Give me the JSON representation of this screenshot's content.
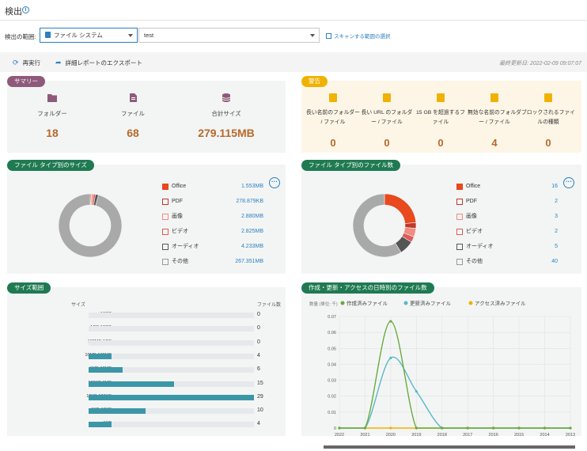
{
  "header": {
    "title": "検出"
  },
  "scope": {
    "label": "検出の範囲:",
    "type_value": "ファイル システム",
    "path_value": "test",
    "scan_link": "スキャンする範囲の選択"
  },
  "toolbar": {
    "rerun": "再実行",
    "export": "詳細レポートのエクスポート",
    "last_updated": "最終更新日: 2022-02-09 09:07:07"
  },
  "summary": {
    "badge": "サマリー",
    "items": [
      {
        "label": "フォルダー",
        "value": "18",
        "icon": "folder-icon"
      },
      {
        "label": "ファイル",
        "value": "68",
        "icon": "file-icon"
      },
      {
        "label": "合計サイズ",
        "value": "279.115MB",
        "icon": "database-icon"
      }
    ]
  },
  "warnings": {
    "badge": "警告",
    "items": [
      {
        "label": "長い名前のフォルダー / ファイル",
        "value": "0",
        "icon": "long-name-icon"
      },
      {
        "label": "長い URL のフォルダー / ファイル",
        "value": "0",
        "icon": "long-url-icon"
      },
      {
        "label": "15 GB を超過するファイル",
        "value": "0",
        "icon": "large-file-icon"
      },
      {
        "label": "無効な名前のフォルダー / ファイル",
        "value": "4",
        "icon": "invalid-name-icon"
      },
      {
        "label": "ブロックされるファイルの種類",
        "value": "0",
        "icon": "blocked-type-icon"
      }
    ]
  },
  "size_by_type": {
    "badge": "ファイル タイプ別のサイズ",
    "items": [
      {
        "name": "Office",
        "value": "1.553MB",
        "color": "#e8491d",
        "icon": "office-icon"
      },
      {
        "name": "PDF",
        "value": "278.879KB",
        "color": "#c0392b",
        "icon": "pdf-icon"
      },
      {
        "name": "画像",
        "value": "2.880MB",
        "color": "#f28b82",
        "icon": "image-icon"
      },
      {
        "name": "ビデオ",
        "value": "2.825MB",
        "color": "#e05a5a",
        "icon": "video-icon"
      },
      {
        "name": "オーディオ",
        "value": "4.233MB",
        "color": "#555555",
        "icon": "audio-icon"
      },
      {
        "name": "その他",
        "value": "267.351MB",
        "color": "#a9a9a9",
        "icon": "other-file-icon"
      }
    ]
  },
  "count_by_type": {
    "badge": "ファイル タイプ別のファイル数",
    "items": [
      {
        "name": "Office",
        "value": "16",
        "color": "#e8491d",
        "icon": "office-icon"
      },
      {
        "name": "PDF",
        "value": "2",
        "color": "#c0392b",
        "icon": "pdf-icon"
      },
      {
        "name": "画像",
        "value": "3",
        "color": "#f28b82",
        "icon": "image-icon"
      },
      {
        "name": "ビデオ",
        "value": "2",
        "color": "#e05a5a",
        "icon": "video-icon"
      },
      {
        "name": "オーディオ",
        "value": "5",
        "color": "#555555",
        "icon": "audio-icon"
      },
      {
        "name": "その他",
        "value": "40",
        "color": "#a9a9a9",
        "icon": "other-file-icon"
      }
    ]
  },
  "size_range": {
    "badge": "サイズ範囲",
    "col_size": "サイズ",
    "col_count": "ファイル数",
    "max": 29,
    "rows": [
      {
        "label": ">10GB",
        "count": 0
      },
      {
        "label": "1GB-10GB",
        "count": 0
      },
      {
        "label": "100MB-1GB",
        "count": 0
      },
      {
        "label": "10MB-100MB",
        "count": 4
      },
      {
        "label": "1MB-10MB",
        "count": 6
      },
      {
        "label": "100KB-1MB",
        "count": 15
      },
      {
        "label": "10KB-100KB",
        "count": 29
      },
      {
        "label": "1KB-10KB",
        "count": 10
      },
      {
        "label": "<1KB",
        "count": 4
      }
    ],
    "bar_color": "#3b97a8"
  },
  "date_chart": {
    "badge": "作成・更新・アクセスの日時別のファイル数"
  },
  "chart_data": [
    {
      "type": "pie",
      "title": "ファイル タイプ別のサイズ",
      "categories": [
        "Office",
        "PDF",
        "画像",
        "ビデオ",
        "オーディオ",
        "その他"
      ],
      "values": [
        1.553,
        0.279,
        2.88,
        2.825,
        4.233,
        267.351
      ],
      "colors": [
        "#e8491d",
        "#c0392b",
        "#f28b82",
        "#e05a5a",
        "#555555",
        "#a9a9a9"
      ]
    },
    {
      "type": "pie",
      "title": "ファイル タイプ別のファイル数",
      "categories": [
        "Office",
        "PDF",
        "画像",
        "ビデオ",
        "オーディオ",
        "その他"
      ],
      "values": [
        16,
        2,
        3,
        2,
        5,
        40
      ],
      "colors": [
        "#e8491d",
        "#c0392b",
        "#f28b82",
        "#e05a5a",
        "#555555",
        "#a9a9a9"
      ]
    },
    {
      "type": "bar",
      "title": "サイズ範囲",
      "categories": [
        ">10GB",
        "1GB-10GB",
        "100MB-1GB",
        "10MB-100MB",
        "1MB-10MB",
        "100KB-1MB",
        "10KB-100KB",
        "1KB-10KB",
        "<1KB"
      ],
      "values": [
        0,
        0,
        0,
        4,
        6,
        15,
        29,
        10,
        4
      ]
    },
    {
      "type": "line",
      "title": "作成・更新・アクセスの日時別のファイル数",
      "ylabel": "数量 (単位: 千)",
      "x": [
        "2022",
        "2021",
        "2020",
        "2019",
        "2018",
        "2017",
        "2016",
        "2015",
        "2014",
        "2013"
      ],
      "ylim": [
        0,
        0.07
      ],
      "yticks": [
        "0",
        "0.01",
        "0.02",
        "0.03",
        "0.04",
        "0.05",
        "0.06",
        "0.07"
      ],
      "grid": true,
      "legend": "top",
      "series": [
        {
          "name": "作成済みファイル",
          "color": "#6aaa3e",
          "values": [
            0,
            0,
            0.067,
            0,
            0,
            0,
            0,
            0,
            0,
            0
          ]
        },
        {
          "name": "更新済みファイル",
          "color": "#5bb8c9",
          "values": [
            0,
            0,
            0.044,
            0.023,
            0,
            0,
            0,
            0,
            0,
            0
          ]
        },
        {
          "name": "アクセス済みファイル",
          "color": "#f0b200",
          "values": [
            0,
            0,
            0,
            0,
            0,
            0,
            0,
            0,
            0,
            0
          ]
        }
      ]
    }
  ]
}
